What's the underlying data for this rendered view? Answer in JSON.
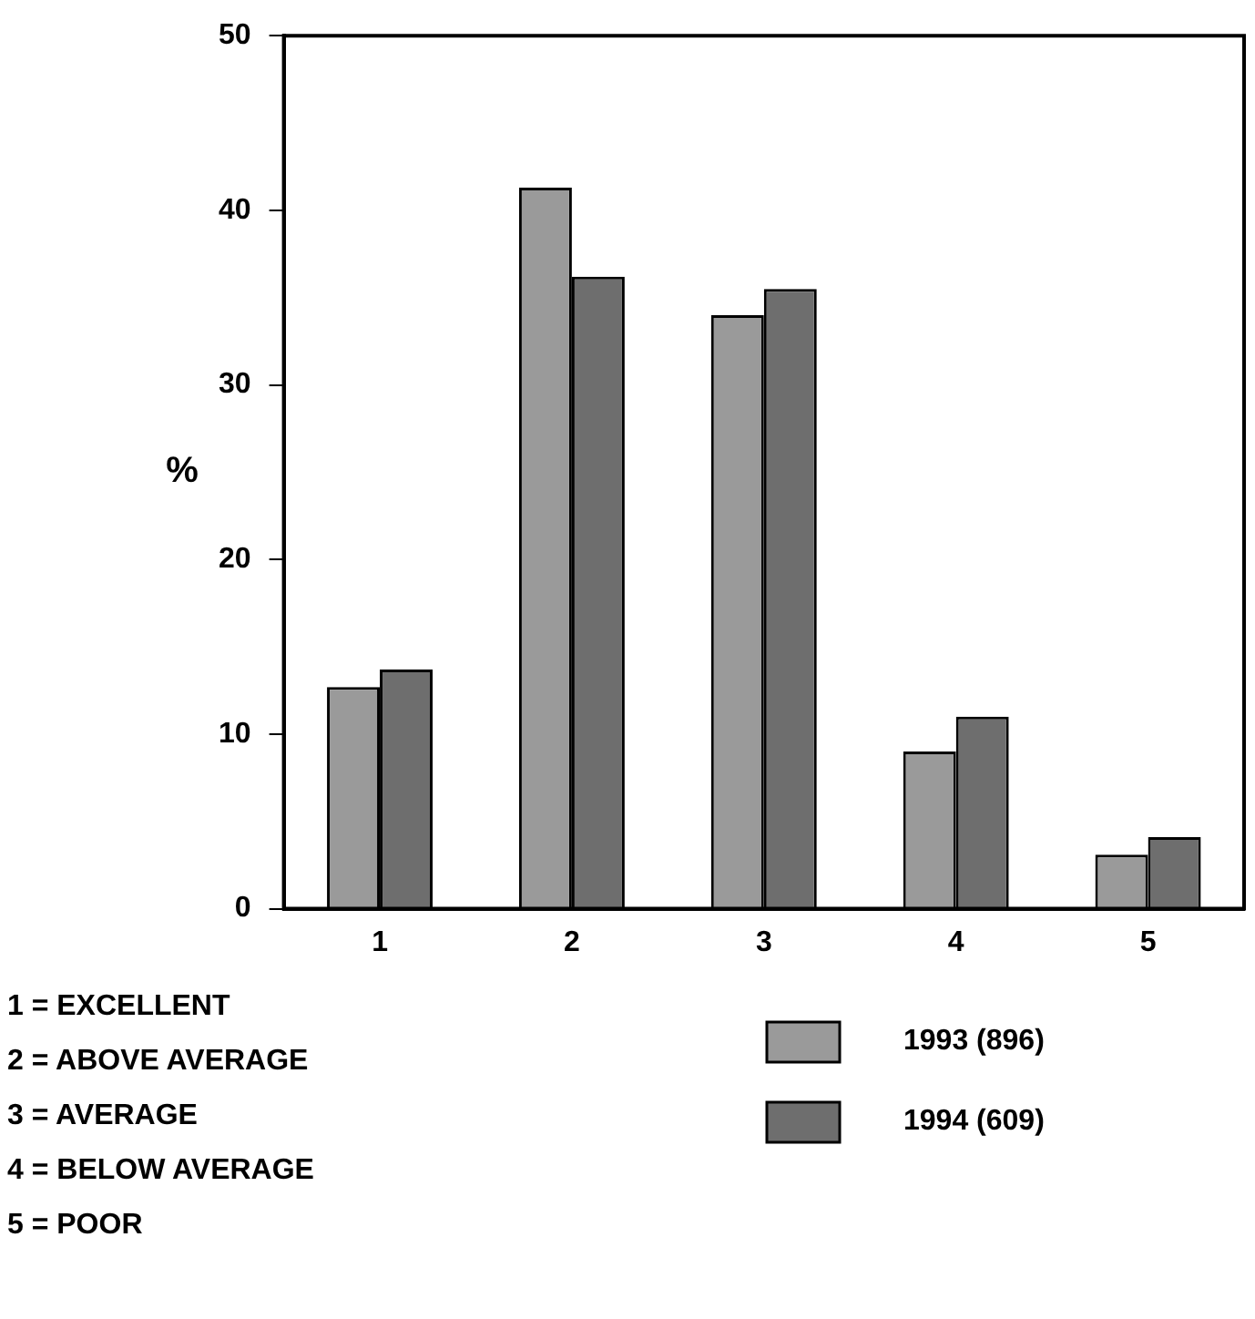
{
  "chart_data": {
    "type": "bar",
    "ylabel": "%",
    "categories": [
      "1",
      "2",
      "3",
      "4",
      "5"
    ],
    "series": [
      {
        "name": "1993 (896)",
        "color": "#9a9a9a",
        "values": [
          12.7,
          41.3,
          34.0,
          9.0,
          3.1
        ]
      },
      {
        "name": "1994 (609)",
        "color": "#6e6e6e",
        "values": [
          13.7,
          36.2,
          35.5,
          11.0,
          4.1
        ]
      }
    ],
    "ylim": [
      0,
      50
    ],
    "yticks": [
      0,
      10,
      20,
      30,
      40,
      50
    ],
    "grid": false,
    "legend": "bottom right",
    "annotations": [
      "1 = EXCELLENT",
      "2 = ABOVE AVERAGE",
      "3 = AVERAGE",
      "4 = BELOW AVERAGE",
      "5 = POOR"
    ]
  }
}
